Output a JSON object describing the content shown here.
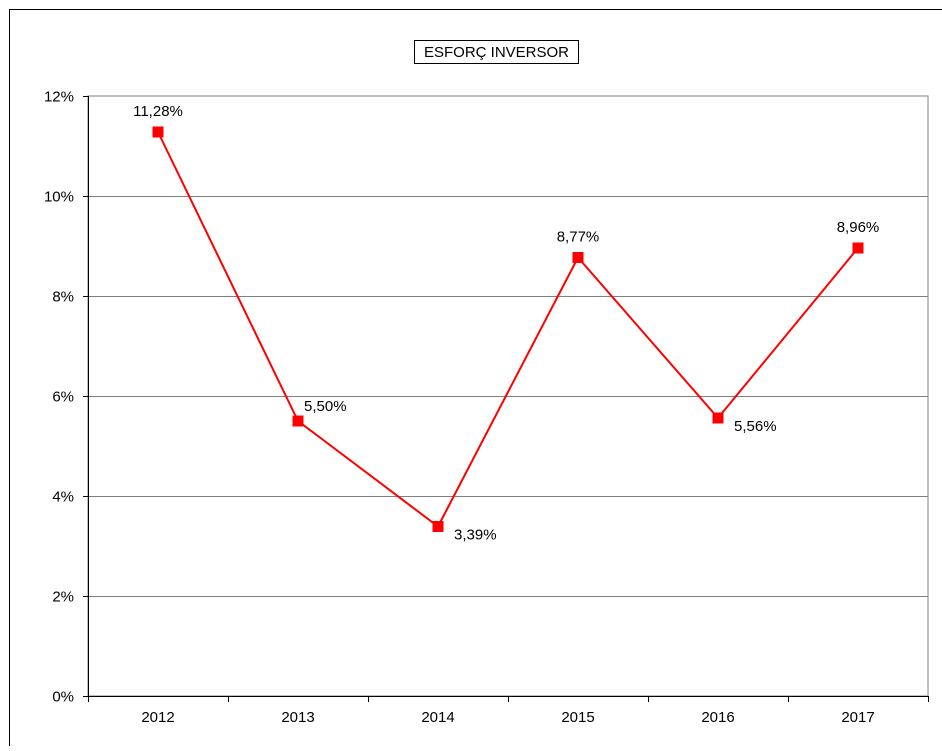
{
  "chart_data": {
    "type": "line",
    "title": "ESFORÇ INVERSOR",
    "categories": [
      "2012",
      "2013",
      "2014",
      "2015",
      "2016",
      "2017"
    ],
    "series": [
      {
        "values": [
          11.28,
          5.5,
          3.39,
          8.77,
          5.56,
          8.96
        ],
        "labels": [
          "11,28%",
          "5,50%",
          "3,39%",
          "8,77%",
          "5,56%",
          "8,96%"
        ],
        "color": "#ff0000"
      }
    ],
    "y_ticks": [
      "0%",
      "2%",
      "4%",
      "6%",
      "8%",
      "10%",
      "12%"
    ],
    "ylim": [
      0,
      12
    ],
    "grid": true,
    "legend": "none",
    "colors": {
      "line": "#ff0000",
      "marker": "#ff0000",
      "gridline": "#808080",
      "axis": "#000000",
      "border": "#000000"
    }
  }
}
